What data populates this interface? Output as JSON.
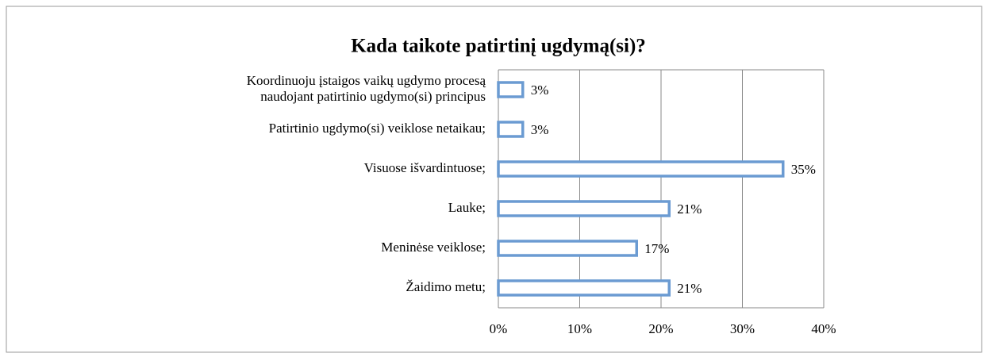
{
  "chart_data": {
    "type": "bar",
    "orientation": "horizontal",
    "title": "Kada taikote patirtinį ugdymą(si)?",
    "categories": [
      [
        "Koordinuoju įstaigos vaikų ugdymo procesą",
        "naudojant patirtinio ugdymo(si) principus"
      ],
      "Patirtinio ugdymo(si) veiklose netaikau;",
      "Visuose išvardintuose;",
      "Lauke;",
      "Meninėse veiklose;",
      "Žaidimo metu;"
    ],
    "values": [
      3,
      3,
      35,
      21,
      17,
      21
    ],
    "value_labels": [
      "3%",
      "3%",
      "35%",
      "21%",
      "17%",
      "21%"
    ],
    "color": "#6b9bd2",
    "xlim": [
      0,
      40
    ],
    "xticks": [
      {
        "value": 0,
        "label": "0%"
      },
      {
        "value": 10,
        "label": "10%"
      },
      {
        "value": 20,
        "label": "20%"
      },
      {
        "value": 30,
        "label": "30%"
      },
      {
        "value": 40,
        "label": "40%"
      }
    ],
    "grid": true
  }
}
